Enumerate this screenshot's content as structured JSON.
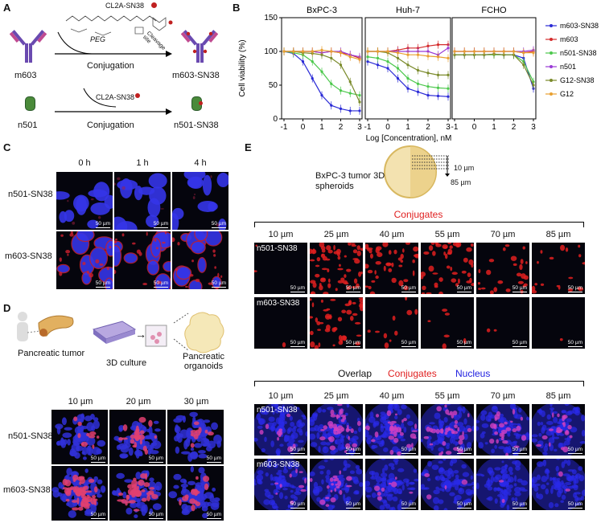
{
  "panels": [
    "A",
    "B",
    "C",
    "D",
    "E"
  ],
  "panel_a": {
    "cl2a_label": "CL2A-SN38",
    "peg_label": "PEG",
    "cleavage_label": "Cleavage site",
    "antibody_label": "m603",
    "conj_product1": "m603-SN38",
    "conjugation1": "Conjugation",
    "nanobody_label": "n501",
    "cl2a_label2": "CL2A-SN38",
    "conjugation2": "Conjugation",
    "conj_product2": "n501-SN38"
  },
  "panel_b": {
    "ylabel": "Cell viability (%)",
    "xlabel": "Log [Concentration], nM",
    "yticks": [
      "0",
      "50",
      "100",
      "150"
    ],
    "xticks": [
      "-1",
      "0",
      "1",
      "2",
      "3"
    ],
    "legend": [
      {
        "name": "m603-SN38",
        "color": "#2a2ad6"
      },
      {
        "name": "m603",
        "color": "#d42a2a"
      },
      {
        "name": "n501-SN38",
        "color": "#4cc84c"
      },
      {
        "name": "n501",
        "color": "#9a3ad6"
      },
      {
        "name": "G12-SN38",
        "color": "#7a8a2a"
      },
      {
        "name": "G12",
        "color": "#e8a030"
      }
    ]
  },
  "chart_data": [
    {
      "type": "line",
      "title": "BxPC-3",
      "xlabel": "Log [Concentration], nM",
      "ylabel": "Cell viability (%)",
      "xlim": [
        -1,
        3
      ],
      "ylim": [
        0,
        150
      ],
      "x": [
        -1,
        -0.5,
        0,
        0.5,
        1,
        1.5,
        2,
        2.5,
        3
      ],
      "series": [
        {
          "name": "m603-SN38",
          "values": [
            100,
            97,
            85,
            60,
            35,
            20,
            15,
            12,
            12
          ]
        },
        {
          "name": "m603",
          "values": [
            100,
            100,
            100,
            100,
            98,
            100,
            98,
            95,
            90
          ]
        },
        {
          "name": "n501-SN38",
          "values": [
            100,
            98,
            95,
            85,
            70,
            52,
            42,
            38,
            35
          ]
        },
        {
          "name": "n501",
          "values": [
            100,
            100,
            100,
            100,
            98,
            100,
            100,
            95,
            92
          ]
        },
        {
          "name": "G12-SN38",
          "values": [
            100,
            100,
            98,
            97,
            95,
            90,
            80,
            55,
            25
          ]
        },
        {
          "name": "G12",
          "values": [
            100,
            100,
            100,
            100,
            102,
            100,
            98,
            92,
            88
          ]
        }
      ]
    },
    {
      "type": "line",
      "title": "Huh-7",
      "xlabel": "Log [Concentration], nM",
      "ylabel": "Cell viability (%)",
      "xlim": [
        -1,
        3
      ],
      "ylim": [
        0,
        150
      ],
      "x": [
        -1,
        -0.5,
        0,
        0.5,
        1,
        1.5,
        2,
        2.5,
        3
      ],
      "series": [
        {
          "name": "m603-SN38",
          "values": [
            85,
            80,
            75,
            60,
            45,
            40,
            35,
            34,
            33
          ]
        },
        {
          "name": "m603",
          "values": [
            100,
            100,
            100,
            102,
            105,
            105,
            108,
            110,
            110
          ]
        },
        {
          "name": "n501-SN38",
          "values": [
            92,
            90,
            85,
            75,
            60,
            52,
            48,
            46,
            45
          ]
        },
        {
          "name": "n501",
          "values": [
            100,
            100,
            100,
            100,
            100,
            100,
            100,
            95,
            105
          ]
        },
        {
          "name": "G12-SN38",
          "values": [
            100,
            100,
            98,
            90,
            80,
            72,
            68,
            65,
            65
          ]
        },
        {
          "name": "G12",
          "values": [
            100,
            100,
            100,
            98,
            95,
            95,
            93,
            92,
            90
          ]
        }
      ]
    },
    {
      "type": "line",
      "title": "FCHO",
      "xlabel": "Log [Concentration], nM",
      "ylabel": "Cell viability (%)",
      "xlim": [
        -1,
        3
      ],
      "ylim": [
        0,
        150
      ],
      "x": [
        -1,
        -0.5,
        0,
        0.5,
        1,
        1.5,
        2,
        2.5,
        3
      ],
      "series": [
        {
          "name": "m603-SN38",
          "values": [
            95,
            95,
            95,
            95,
            96,
            95,
            95,
            90,
            45
          ]
        },
        {
          "name": "m603",
          "values": [
            100,
            100,
            100,
            100,
            100,
            100,
            100,
            98,
            100
          ]
        },
        {
          "name": "n501-SN38",
          "values": [
            95,
            95,
            95,
            95,
            95,
            95,
            95,
            85,
            55
          ]
        },
        {
          "name": "n501",
          "values": [
            100,
            100,
            100,
            100,
            100,
            100,
            100,
            100,
            102
          ]
        },
        {
          "name": "G12-SN38",
          "values": [
            95,
            95,
            95,
            95,
            96,
            95,
            95,
            80,
            50
          ]
        },
        {
          "name": "G12",
          "values": [
            100,
            100,
            100,
            100,
            100,
            100,
            100,
            98,
            98
          ]
        }
      ]
    }
  ],
  "panel_c": {
    "times": [
      "0 h",
      "1 h",
      "4 h"
    ],
    "rows": [
      "n501-SN38",
      "m603-SN38"
    ],
    "scale": "50 µm"
  },
  "panel_d": {
    "tumor_label": "Pancreatic tumor",
    "culture_label": "3D culture",
    "organoid_label": "Pancreatic organoids",
    "depths": [
      "10 µm",
      "20 µm",
      "30 µm"
    ],
    "rows": [
      "n501-SN38",
      "m603-SN38"
    ],
    "scale": "50 µm"
  },
  "panel_e": {
    "spheroid_label": "BxPC-3 tumor 3D spheroids",
    "depth_top": "10 µm",
    "depth_bottom": "85 µm",
    "conjugates_title": "Conjugates",
    "overlap_title": "Overlap",
    "conjugates_title2": "Conjugates",
    "nucleus_title": "Nucleus",
    "depths": [
      "10 µm",
      "25 µm",
      "40 µm",
      "55 µm",
      "70 µm",
      "85 µm"
    ],
    "rows": [
      "n501-SN38",
      "m603-SN38"
    ],
    "scale": "50 µm",
    "colors": {
      "conjugates": "#e02020",
      "nucleus": "#2020e0"
    }
  }
}
